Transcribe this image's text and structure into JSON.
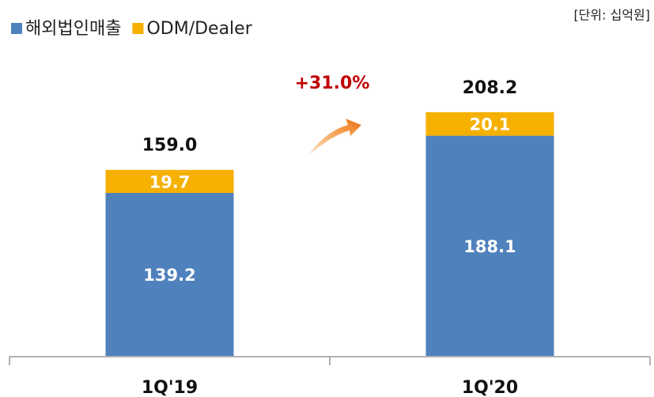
{
  "chart_data": {
    "type": "stacked_bar",
    "unit": "[단위: 십억원]",
    "annotation": "+31.0%",
    "categories": [
      "1Q'19",
      "1Q'20"
    ],
    "series": [
      {
        "name": "해외법인매출",
        "color": "#4f81bd",
        "values": [
          139.2,
          188.1
        ]
      },
      {
        "name": "ODM/Dealer",
        "color": "#f5b000",
        "values": [
          19.7,
          20.1
        ]
      }
    ],
    "totals": {
      "values": [
        159.0,
        208.2
      ],
      "value_labels": [
        "159.0",
        "208.2"
      ]
    },
    "ylim": [
      0,
      250
    ]
  }
}
